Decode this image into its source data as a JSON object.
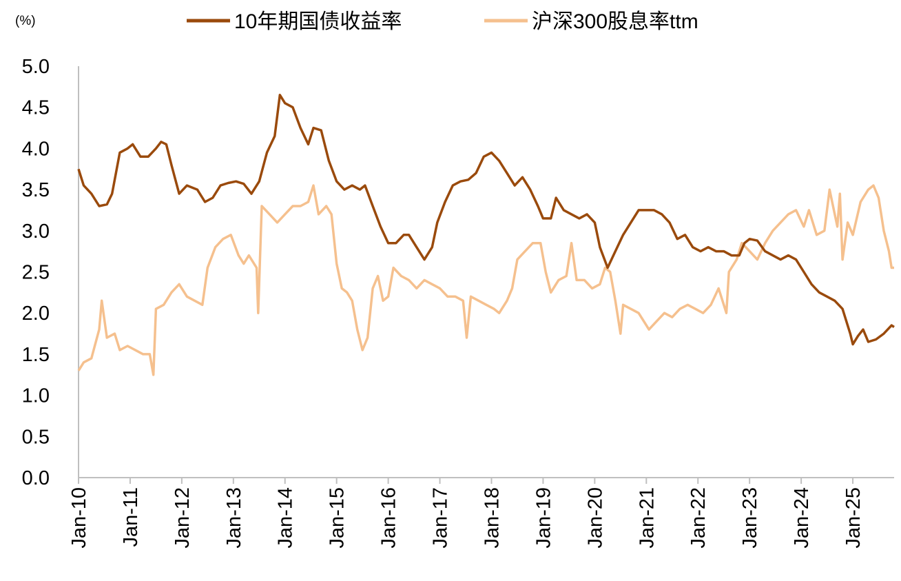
{
  "chart_data": {
    "type": "line",
    "unit_label": "(%)",
    "title": "",
    "xlabel": "",
    "ylabel": "",
    "ylim": [
      0,
      5
    ],
    "y_ticks": [
      "0.0",
      "0.5",
      "1.0",
      "1.5",
      "2.0",
      "2.5",
      "3.0",
      "3.5",
      "4.0",
      "4.5",
      "5.0"
    ],
    "x_range": [
      2010.0,
      2025.8
    ],
    "x_ticks": [
      "Jan-10",
      "Jan-11",
      "Jan-12",
      "Jan-13",
      "Jan-14",
      "Jan-15",
      "Jan-16",
      "Jan-17",
      "Jan-18",
      "Jan-19",
      "Jan-20",
      "Jan-21",
      "Jan-22",
      "Jan-23",
      "Jan-24",
      "Jan-25"
    ],
    "legend_position": "top",
    "grid": false,
    "series": [
      {
        "name": "10年期国债收益率",
        "color": "#9a4a0c",
        "points": [
          [
            2010.0,
            3.75
          ],
          [
            2010.1,
            3.55
          ],
          [
            2010.25,
            3.45
          ],
          [
            2010.4,
            3.3
          ],
          [
            2010.55,
            3.32
          ],
          [
            2010.65,
            3.45
          ],
          [
            2010.8,
            3.95
          ],
          [
            2010.95,
            4.0
          ],
          [
            2011.05,
            4.05
          ],
          [
            2011.2,
            3.9
          ],
          [
            2011.35,
            3.9
          ],
          [
            2011.5,
            4.0
          ],
          [
            2011.6,
            4.08
          ],
          [
            2011.7,
            4.05
          ],
          [
            2011.8,
            3.8
          ],
          [
            2011.95,
            3.45
          ],
          [
            2012.1,
            3.55
          ],
          [
            2012.3,
            3.5
          ],
          [
            2012.45,
            3.35
          ],
          [
            2012.6,
            3.4
          ],
          [
            2012.75,
            3.55
          ],
          [
            2012.9,
            3.58
          ],
          [
            2013.05,
            3.6
          ],
          [
            2013.2,
            3.57
          ],
          [
            2013.35,
            3.45
          ],
          [
            2013.5,
            3.6
          ],
          [
            2013.65,
            3.95
          ],
          [
            2013.8,
            4.15
          ],
          [
            2013.9,
            4.65
          ],
          [
            2014.0,
            4.55
          ],
          [
            2014.15,
            4.5
          ],
          [
            2014.3,
            4.25
          ],
          [
            2014.45,
            4.05
          ],
          [
            2014.55,
            4.25
          ],
          [
            2014.7,
            4.22
          ],
          [
            2014.85,
            3.85
          ],
          [
            2015.0,
            3.6
          ],
          [
            2015.15,
            3.5
          ],
          [
            2015.3,
            3.55
          ],
          [
            2015.45,
            3.5
          ],
          [
            2015.55,
            3.55
          ],
          [
            2015.7,
            3.3
          ],
          [
            2015.85,
            3.05
          ],
          [
            2016.0,
            2.85
          ],
          [
            2016.15,
            2.85
          ],
          [
            2016.3,
            2.95
          ],
          [
            2016.4,
            2.95
          ],
          [
            2016.55,
            2.8
          ],
          [
            2016.7,
            2.65
          ],
          [
            2016.85,
            2.8
          ],
          [
            2016.95,
            3.1
          ],
          [
            2017.1,
            3.35
          ],
          [
            2017.25,
            3.55
          ],
          [
            2017.4,
            3.6
          ],
          [
            2017.55,
            3.62
          ],
          [
            2017.7,
            3.7
          ],
          [
            2017.85,
            3.9
          ],
          [
            2018.0,
            3.95
          ],
          [
            2018.15,
            3.85
          ],
          [
            2018.3,
            3.7
          ],
          [
            2018.45,
            3.55
          ],
          [
            2018.6,
            3.65
          ],
          [
            2018.75,
            3.5
          ],
          [
            2018.9,
            3.3
          ],
          [
            2019.0,
            3.15
          ],
          [
            2019.15,
            3.15
          ],
          [
            2019.25,
            3.4
          ],
          [
            2019.4,
            3.25
          ],
          [
            2019.55,
            3.2
          ],
          [
            2019.7,
            3.15
          ],
          [
            2019.85,
            3.2
          ],
          [
            2020.0,
            3.1
          ],
          [
            2020.1,
            2.8
          ],
          [
            2020.25,
            2.55
          ],
          [
            2020.4,
            2.75
          ],
          [
            2020.55,
            2.95
          ],
          [
            2020.7,
            3.1
          ],
          [
            2020.85,
            3.25
          ],
          [
            2021.0,
            3.25
          ],
          [
            2021.15,
            3.25
          ],
          [
            2021.3,
            3.2
          ],
          [
            2021.45,
            3.1
          ],
          [
            2021.6,
            2.9
          ],
          [
            2021.75,
            2.95
          ],
          [
            2021.9,
            2.8
          ],
          [
            2022.05,
            2.75
          ],
          [
            2022.2,
            2.8
          ],
          [
            2022.35,
            2.75
          ],
          [
            2022.5,
            2.75
          ],
          [
            2022.65,
            2.7
          ],
          [
            2022.8,
            2.7
          ],
          [
            2022.9,
            2.85
          ],
          [
            2023.0,
            2.9
          ],
          [
            2023.15,
            2.88
          ],
          [
            2023.3,
            2.75
          ],
          [
            2023.45,
            2.7
          ],
          [
            2023.6,
            2.65
          ],
          [
            2023.75,
            2.7
          ],
          [
            2023.9,
            2.65
          ],
          [
            2024.05,
            2.5
          ],
          [
            2024.2,
            2.35
          ],
          [
            2024.35,
            2.25
          ],
          [
            2024.5,
            2.2
          ],
          [
            2024.65,
            2.15
          ],
          [
            2024.8,
            2.05
          ],
          [
            2024.95,
            1.75
          ],
          [
            2025.0,
            1.62
          ],
          [
            2025.1,
            1.72
          ],
          [
            2025.2,
            1.8
          ],
          [
            2025.3,
            1.65
          ],
          [
            2025.45,
            1.68
          ],
          [
            2025.6,
            1.75
          ],
          [
            2025.75,
            1.85
          ],
          [
            2025.8,
            1.83
          ]
        ]
      },
      {
        "name": "沪深300股息率ttm",
        "color": "#f5c08e",
        "points": [
          [
            2010.0,
            1.3
          ],
          [
            2010.1,
            1.4
          ],
          [
            2010.25,
            1.45
          ],
          [
            2010.4,
            1.8
          ],
          [
            2010.45,
            2.15
          ],
          [
            2010.55,
            1.7
          ],
          [
            2010.7,
            1.75
          ],
          [
            2010.8,
            1.55
          ],
          [
            2010.95,
            1.6
          ],
          [
            2011.1,
            1.55
          ],
          [
            2011.25,
            1.5
          ],
          [
            2011.38,
            1.5
          ],
          [
            2011.45,
            1.25
          ],
          [
            2011.5,
            2.05
          ],
          [
            2011.65,
            2.1
          ],
          [
            2011.8,
            2.25
          ],
          [
            2011.95,
            2.35
          ],
          [
            2012.1,
            2.2
          ],
          [
            2012.25,
            2.15
          ],
          [
            2012.4,
            2.1
          ],
          [
            2012.5,
            2.55
          ],
          [
            2012.65,
            2.8
          ],
          [
            2012.8,
            2.9
          ],
          [
            2012.95,
            2.95
          ],
          [
            2013.1,
            2.7
          ],
          [
            2013.2,
            2.6
          ],
          [
            2013.3,
            2.7
          ],
          [
            2013.45,
            2.55
          ],
          [
            2013.48,
            2.0
          ],
          [
            2013.55,
            3.3
          ],
          [
            2013.7,
            3.2
          ],
          [
            2013.85,
            3.1
          ],
          [
            2014.0,
            3.2
          ],
          [
            2014.15,
            3.3
          ],
          [
            2014.3,
            3.3
          ],
          [
            2014.45,
            3.35
          ],
          [
            2014.55,
            3.55
          ],
          [
            2014.65,
            3.2
          ],
          [
            2014.8,
            3.3
          ],
          [
            2014.9,
            3.2
          ],
          [
            2015.0,
            2.6
          ],
          [
            2015.1,
            2.3
          ],
          [
            2015.2,
            2.25
          ],
          [
            2015.3,
            2.15
          ],
          [
            2015.4,
            1.8
          ],
          [
            2015.5,
            1.55
          ],
          [
            2015.6,
            1.7
          ],
          [
            2015.7,
            2.3
          ],
          [
            2015.8,
            2.45
          ],
          [
            2015.9,
            2.15
          ],
          [
            2016.0,
            2.2
          ],
          [
            2016.1,
            2.55
          ],
          [
            2016.25,
            2.45
          ],
          [
            2016.4,
            2.4
          ],
          [
            2016.55,
            2.3
          ],
          [
            2016.7,
            2.4
          ],
          [
            2016.85,
            2.35
          ],
          [
            2017.0,
            2.3
          ],
          [
            2017.15,
            2.2
          ],
          [
            2017.3,
            2.2
          ],
          [
            2017.45,
            2.15
          ],
          [
            2017.52,
            1.7
          ],
          [
            2017.6,
            2.2
          ],
          [
            2017.75,
            2.15
          ],
          [
            2017.9,
            2.1
          ],
          [
            2018.05,
            2.05
          ],
          [
            2018.15,
            2.0
          ],
          [
            2018.3,
            2.15
          ],
          [
            2018.4,
            2.3
          ],
          [
            2018.5,
            2.65
          ],
          [
            2018.65,
            2.75
          ],
          [
            2018.8,
            2.85
          ],
          [
            2018.95,
            2.85
          ],
          [
            2019.05,
            2.5
          ],
          [
            2019.15,
            2.25
          ],
          [
            2019.3,
            2.4
          ],
          [
            2019.45,
            2.45
          ],
          [
            2019.55,
            2.85
          ],
          [
            2019.65,
            2.4
          ],
          [
            2019.8,
            2.4
          ],
          [
            2019.95,
            2.3
          ],
          [
            2020.1,
            2.35
          ],
          [
            2020.2,
            2.55
          ],
          [
            2020.3,
            2.5
          ],
          [
            2020.4,
            2.15
          ],
          [
            2020.5,
            1.75
          ],
          [
            2020.55,
            2.1
          ],
          [
            2020.7,
            2.05
          ],
          [
            2020.85,
            2.0
          ],
          [
            2020.95,
            1.9
          ],
          [
            2021.05,
            1.8
          ],
          [
            2021.2,
            1.9
          ],
          [
            2021.35,
            2.0
          ],
          [
            2021.5,
            1.95
          ],
          [
            2021.65,
            2.05
          ],
          [
            2021.8,
            2.1
          ],
          [
            2021.95,
            2.05
          ],
          [
            2022.1,
            2.0
          ],
          [
            2022.25,
            2.1
          ],
          [
            2022.4,
            2.3
          ],
          [
            2022.55,
            2.0
          ],
          [
            2022.6,
            2.5
          ],
          [
            2022.75,
            2.65
          ],
          [
            2022.85,
            2.85
          ],
          [
            2023.0,
            2.75
          ],
          [
            2023.15,
            2.65
          ],
          [
            2023.3,
            2.85
          ],
          [
            2023.45,
            3.0
          ],
          [
            2023.6,
            3.1
          ],
          [
            2023.75,
            3.2
          ],
          [
            2023.9,
            3.25
          ],
          [
            2024.05,
            3.05
          ],
          [
            2024.15,
            3.25
          ],
          [
            2024.3,
            2.95
          ],
          [
            2024.45,
            3.0
          ],
          [
            2024.55,
            3.5
          ],
          [
            2024.7,
            3.05
          ],
          [
            2024.75,
            3.45
          ],
          [
            2024.8,
            2.65
          ],
          [
            2024.9,
            3.1
          ],
          [
            2025.0,
            2.95
          ],
          [
            2025.15,
            3.35
          ],
          [
            2025.3,
            3.5
          ],
          [
            2025.4,
            3.55
          ],
          [
            2025.5,
            3.4
          ],
          [
            2025.6,
            3.0
          ],
          [
            2025.7,
            2.75
          ],
          [
            2025.75,
            2.55
          ],
          [
            2025.8,
            2.55
          ]
        ]
      }
    ]
  }
}
